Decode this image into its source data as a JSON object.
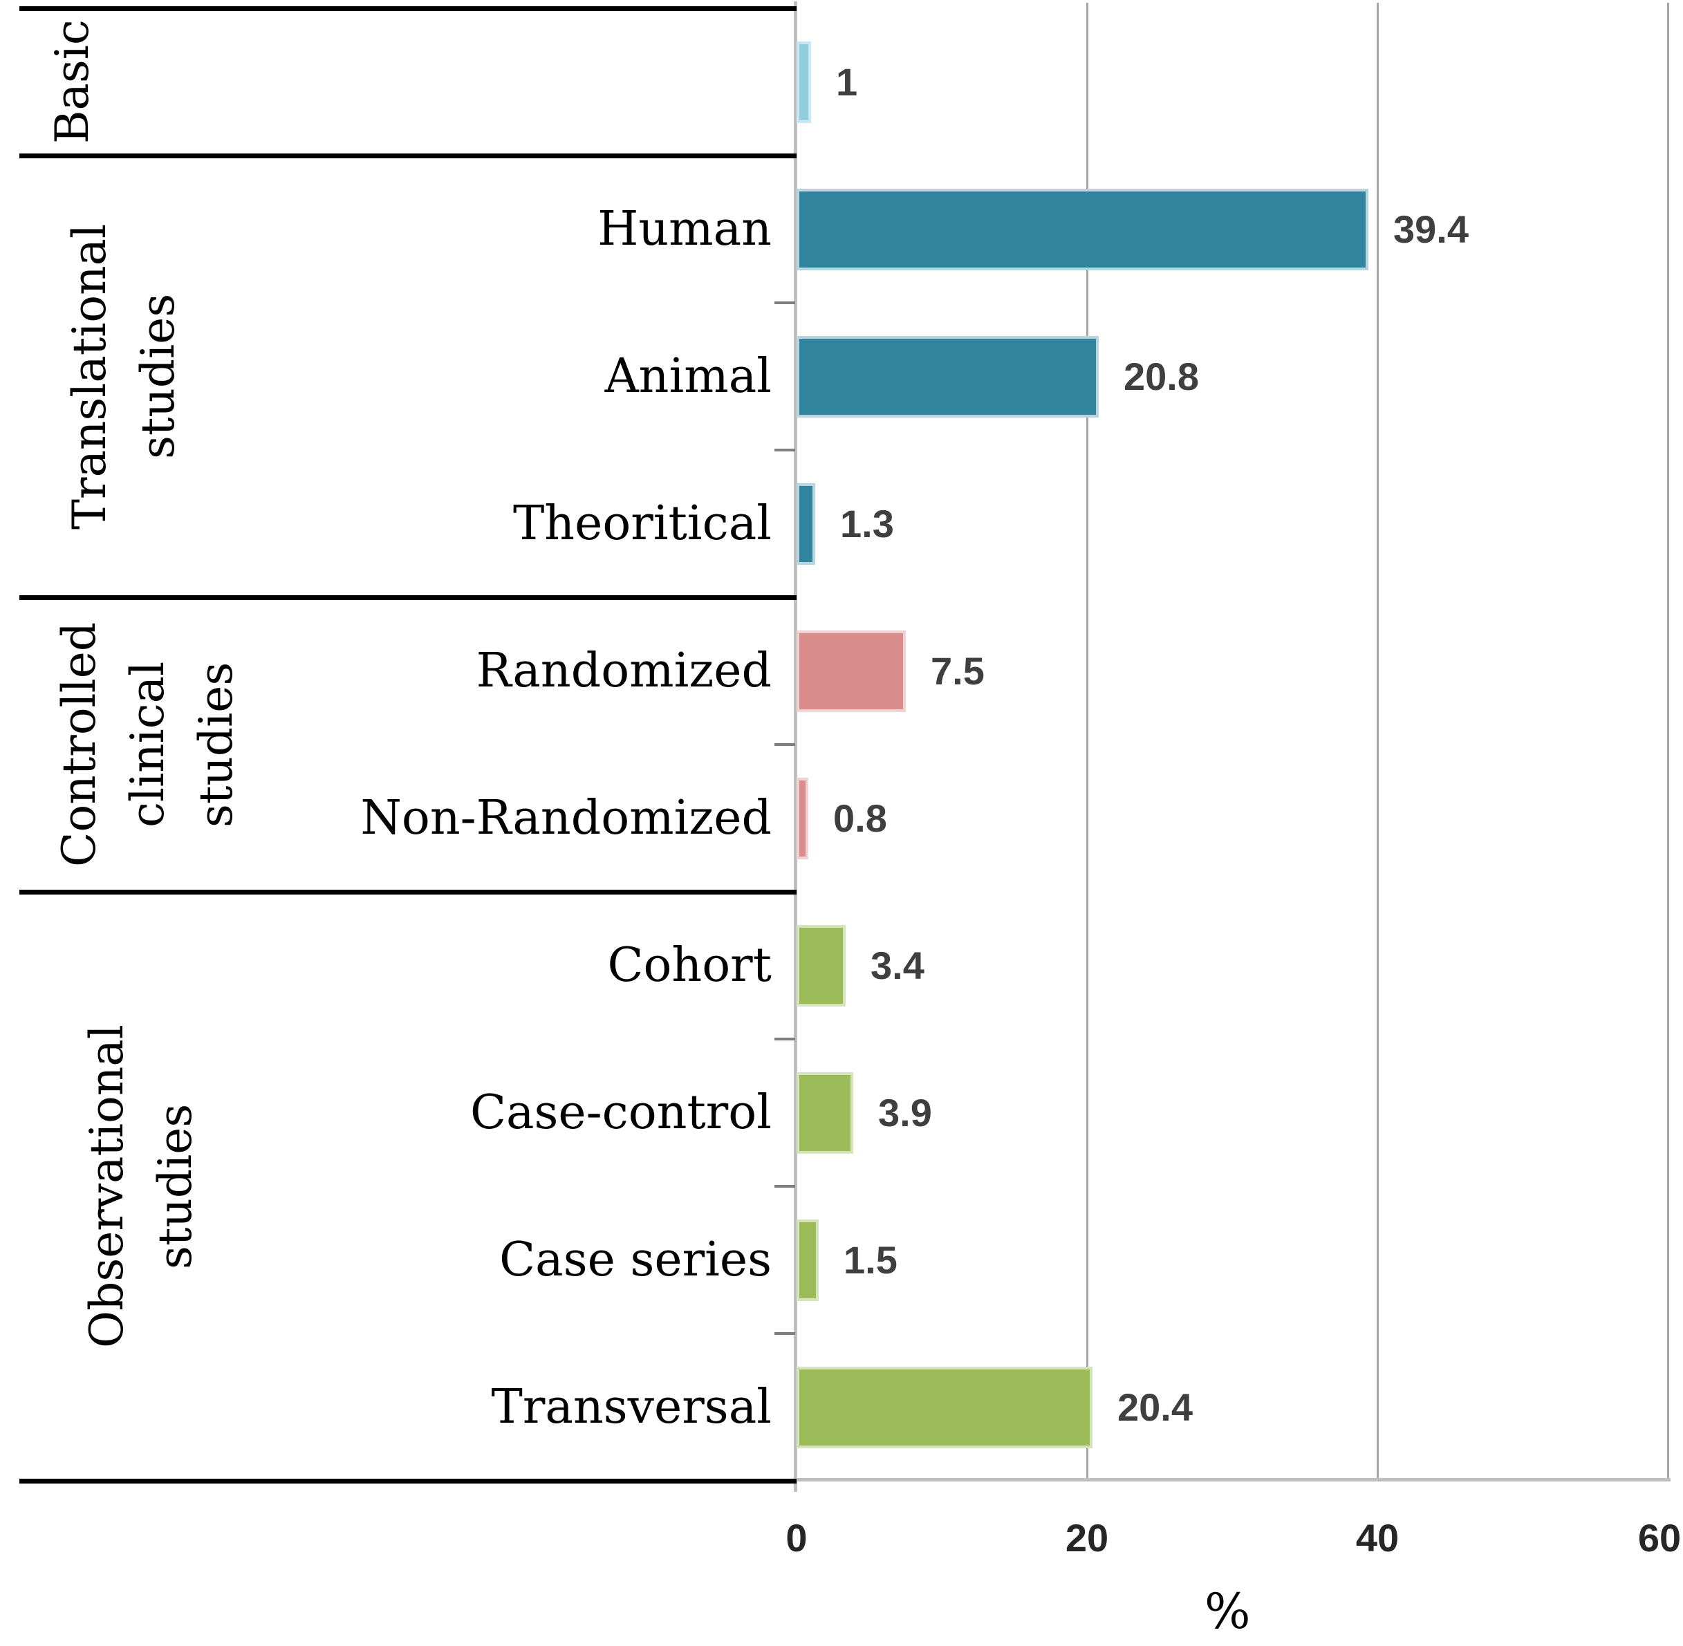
{
  "chart_data": {
    "type": "bar",
    "orientation": "horizontal",
    "title": "",
    "xlabel": "%",
    "xlim": [
      0,
      60
    ],
    "x_ticks": [
      "0",
      "20",
      "40",
      "60"
    ],
    "x_tick_values": [
      0,
      20,
      40,
      60
    ],
    "grid": "vertical gridlines at 20, 40, 60",
    "legend": "none",
    "groups": [
      {
        "label": "Basic",
        "items": [
          {
            "category": "",
            "value": 1,
            "value_label": "1",
            "series": "basic"
          }
        ]
      },
      {
        "label": "Translational\nstudies",
        "items": [
          {
            "category": "Human",
            "value": 39.4,
            "value_label": "39.4",
            "series": "translational"
          },
          {
            "category": "Animal",
            "value": 20.8,
            "value_label": "20.8",
            "series": "translational"
          },
          {
            "category": "Theoritical",
            "value": 1.3,
            "value_label": "1.3",
            "series": "translational"
          }
        ]
      },
      {
        "label": "Controlled\nclinical\nstudies",
        "items": [
          {
            "category": "Randomized",
            "value": 7.5,
            "value_label": "7.5",
            "series": "controlled"
          },
          {
            "category": "Non-Randomized",
            "value": 0.8,
            "value_label": "0.8",
            "series": "controlled"
          }
        ]
      },
      {
        "label": "Observational\nstudies",
        "items": [
          {
            "category": "Cohort",
            "value": 3.4,
            "value_label": "3.4",
            "series": "observational"
          },
          {
            "category": "Case-control",
            "value": 3.9,
            "value_label": "3.9",
            "series": "observational"
          },
          {
            "category": "Case series",
            "value": 1.5,
            "value_label": "1.5",
            "series": "observational"
          },
          {
            "category": "Transversal",
            "value": 20.4,
            "value_label": "20.4",
            "series": "observational"
          }
        ]
      }
    ],
    "colors": {
      "basic": "#92CDDC",
      "basic_border": "#C9E6F2",
      "translational": "#31849E",
      "translational_border": "#B7D5DE",
      "controlled": "#D98C8C",
      "controlled_border": "#EFD3D3",
      "observational": "#9BBB59",
      "observational_border": "#D6E4BE",
      "gridline": "#A6A6A6",
      "axis_line": "#BFBFBF",
      "separator": "#000000",
      "value_text": "#3F3F3F",
      "tick_text": "#262626"
    }
  }
}
